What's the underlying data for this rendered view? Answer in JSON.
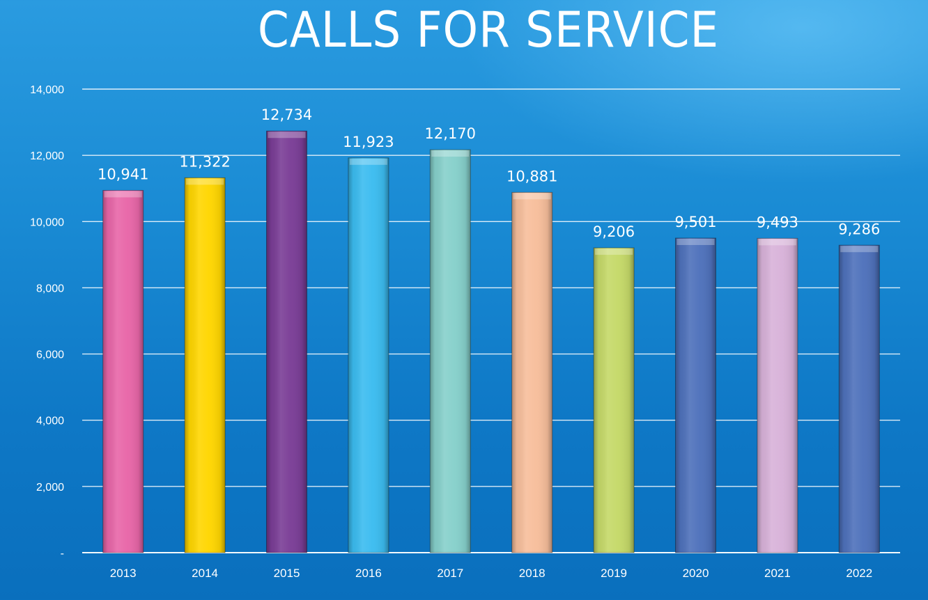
{
  "chart_data": {
    "type": "bar",
    "title": "CALLS FOR SERVICE",
    "categories": [
      "2013",
      "2014",
      "2015",
      "2016",
      "2017",
      "2018",
      "2019",
      "2020",
      "2021",
      "2022"
    ],
    "values": [
      10941,
      11322,
      12734,
      11923,
      12170,
      10881,
      9206,
      9501,
      9493,
      9286
    ],
    "value_labels": [
      "10,941",
      "11,322",
      "12,734",
      "11,923",
      "12,170",
      "10,881",
      "9,206",
      "9,501",
      "9,493",
      "9,286"
    ],
    "bar_colors": [
      "#e866a8",
      "#ffd600",
      "#7a3d96",
      "#3bbcf0",
      "#86d0cb",
      "#f7be9b",
      "#c5d968",
      "#4e71bb",
      "#d8b2d9",
      "#4e71bb"
    ],
    "y_ticks": [
      0,
      2000,
      4000,
      6000,
      8000,
      10000,
      12000,
      14000
    ],
    "y_tick_labels": [
      "-",
      "2,000",
      "4,000",
      "6,000",
      "8,000",
      "10,000",
      "12,000",
      "14,000"
    ],
    "ylim": [
      0,
      14000
    ],
    "xlabel": "",
    "ylabel": "",
    "grid": true,
    "legend": "none"
  }
}
